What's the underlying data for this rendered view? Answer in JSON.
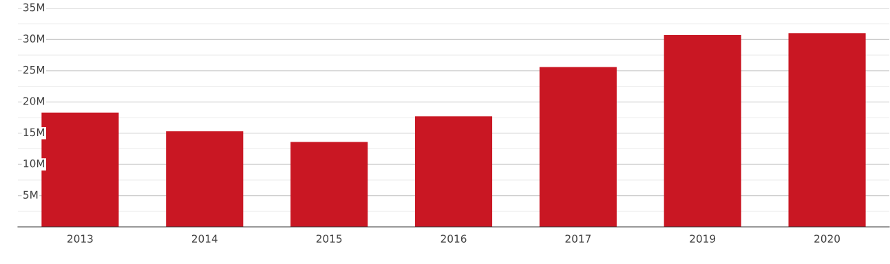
{
  "chart_data": {
    "type": "bar",
    "categories": [
      "2013",
      "2014",
      "2015",
      "2016",
      "2017",
      "2019",
      "2020"
    ],
    "values": [
      18300000,
      15300000,
      13600000,
      17700000,
      25600000,
      30700000,
      31000000
    ],
    "color": "#c91723",
    "ylim": [
      0,
      35000000
    ],
    "yticks": [
      {
        "value": 2500000,
        "label": null
      },
      {
        "value": 5000000,
        "label": "5M"
      },
      {
        "value": 7500000,
        "label": null
      },
      {
        "value": 10000000,
        "label": "10M"
      },
      {
        "value": 12500000,
        "label": null
      },
      {
        "value": 15000000,
        "label": "15M"
      },
      {
        "value": 17500000,
        "label": null
      },
      {
        "value": 20000000,
        "label": "20M"
      },
      {
        "value": 22500000,
        "label": null
      },
      {
        "value": 25000000,
        "label": "25M"
      },
      {
        "value": 27500000,
        "label": null
      },
      {
        "value": 30000000,
        "label": "30M"
      },
      {
        "value": 32500000,
        "label": null
      },
      {
        "value": 35000000,
        "label": "35M"
      }
    ],
    "grid": "y"
  }
}
